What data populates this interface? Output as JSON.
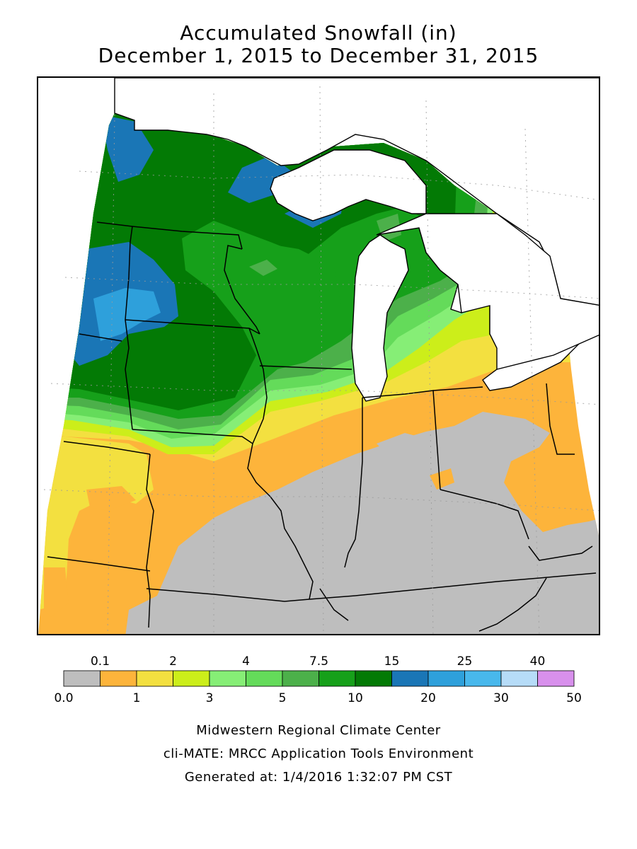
{
  "title_line1": "Accumulated Snowfall (in)",
  "title_line2": "December 1, 2015 to December 31, 2015",
  "legend": {
    "bins": [
      {
        "color": "#bebebe"
      },
      {
        "color": "#fdb43b"
      },
      {
        "color": "#f3e040"
      },
      {
        "color": "#ccee1a"
      },
      {
        "color": "#86ee76"
      },
      {
        "color": "#64db5a"
      },
      {
        "color": "#4cb04a"
      },
      {
        "color": "#16a01a"
      },
      {
        "color": "#037a05"
      },
      {
        "color": "#1a76b6"
      },
      {
        "color": "#2ea0db"
      },
      {
        "color": "#48b8ec"
      },
      {
        "color": "#b6dcf8"
      },
      {
        "color": "#d890ec"
      }
    ],
    "top_labels": [
      "0.1",
      "2",
      "4",
      "7.5",
      "15",
      "25",
      "40"
    ],
    "bottom_labels": [
      "0.0",
      "1",
      "3",
      "5",
      "10",
      "20",
      "30",
      "50"
    ]
  },
  "footer": {
    "line1": "Midwestern Regional Climate Center",
    "line2": "cli-MATE: MRCC Application Tools Environment",
    "line3": "Generated at: 1/4/2016 1:32:07 PM CST"
  }
}
